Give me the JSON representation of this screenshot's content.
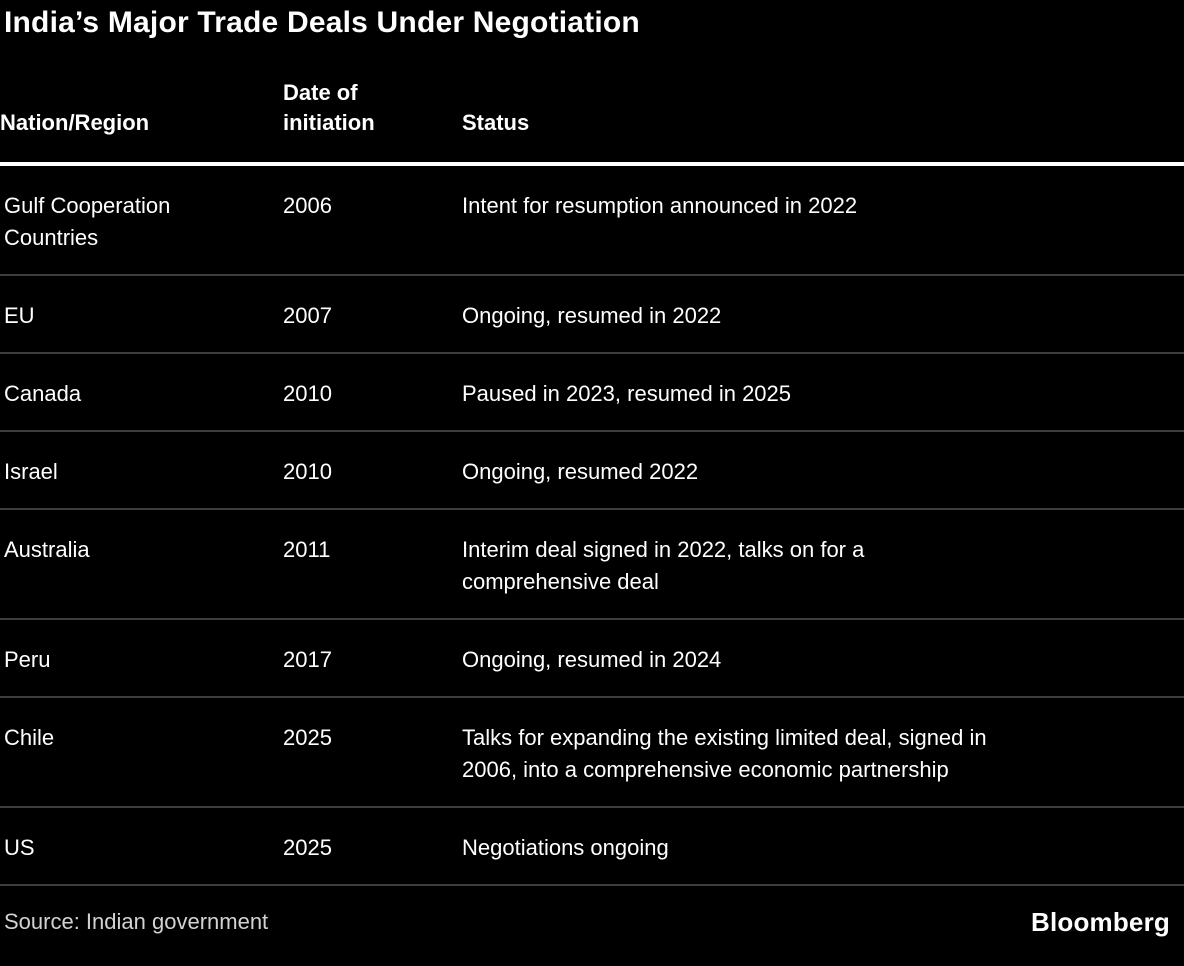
{
  "title": "India’s Major Trade Deals Under Negotiation",
  "colors": {
    "background": "#000000",
    "text": "#ffffff",
    "header_divider": "#ffffff",
    "row_divider": "#3e3e3e",
    "source_text": "#d2d2d2"
  },
  "chart_data": {
    "type": "table",
    "title": "India’s Major Trade Deals Under Negotiation",
    "columns": [
      "Nation/Region",
      "Date of initiation",
      "Status"
    ],
    "rows": [
      {
        "nation": "Gulf Cooperation\nCountries",
        "date": "2006",
        "status": "Intent for resumption announced in 2022"
      },
      {
        "nation": "EU",
        "date": "2007",
        "status": "Ongoing, resumed in 2022"
      },
      {
        "nation": "Canada",
        "date": "2010",
        "status": "Paused in 2023, resumed in 2025"
      },
      {
        "nation": "Israel",
        "date": "2010",
        "status": "Ongoing, resumed 2022"
      },
      {
        "nation": "Australia",
        "date": "2011",
        "status": "Interim deal signed in 2022, talks on for a\ncomprehensive deal"
      },
      {
        "nation": "Peru",
        "date": "2017",
        "status": "Ongoing, resumed in 2024"
      },
      {
        "nation": "Chile",
        "date": "2025",
        "status": "Talks for expanding the existing limited deal, signed in\n2006, into a comprehensive economic partnership"
      },
      {
        "nation": "US",
        "date": "2025",
        "status": "Negotiations ongoing"
      }
    ],
    "source": "Source: Indian government",
    "brand": "Bloomberg"
  },
  "table": {
    "columns": [
      {
        "label": "Nation/Region"
      },
      {
        "label": "Date of initiation"
      },
      {
        "label": "Status"
      }
    ],
    "rows": [
      {
        "nation": "Gulf Cooperation\nCountries",
        "date": "2006",
        "status": "Intent for resumption announced in 2022"
      },
      {
        "nation": "EU",
        "date": "2007",
        "status": "Ongoing, resumed in 2022"
      },
      {
        "nation": "Canada",
        "date": "2010",
        "status": "Paused in 2023, resumed in 2025"
      },
      {
        "nation": "Israel",
        "date": "2010",
        "status": "Ongoing, resumed 2022"
      },
      {
        "nation": "Australia",
        "date": "2011",
        "status": "Interim deal signed in 2022, talks on for a\ncomprehensive deal"
      },
      {
        "nation": "Peru",
        "date": "2017",
        "status": "Ongoing, resumed in 2024"
      },
      {
        "nation": "Chile",
        "date": "2025",
        "status": "Talks for expanding the existing limited deal, signed in\n2006, into a comprehensive economic partnership"
      },
      {
        "nation": "US",
        "date": "2025",
        "status": "Negotiations ongoing"
      }
    ]
  },
  "footer": {
    "source": "Source: Indian government",
    "brand": "Bloomberg"
  }
}
